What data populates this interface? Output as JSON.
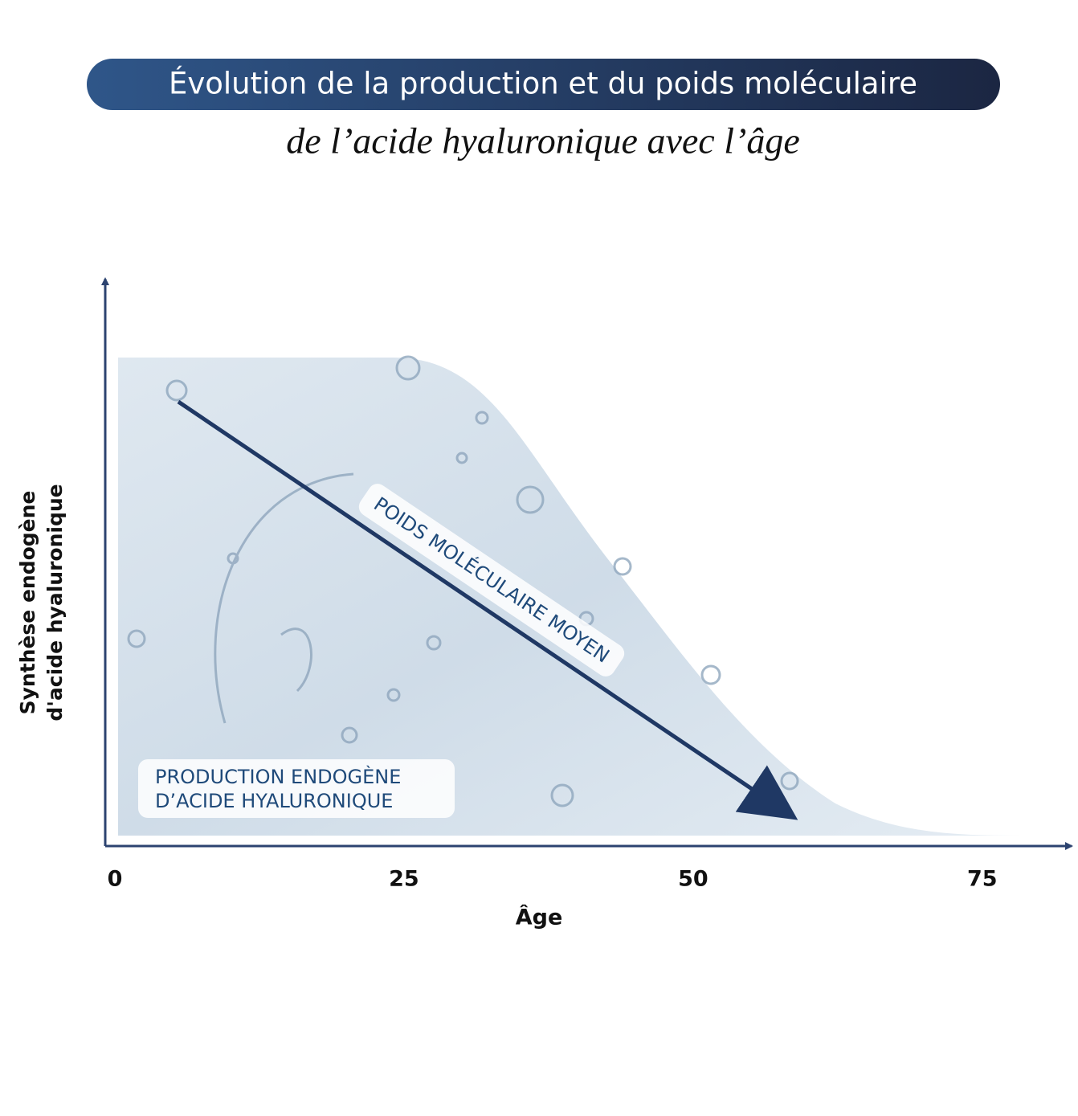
{
  "chart_data": {
    "type": "area",
    "title": "Évolution de la production et du poids moléculaire",
    "subtitle": "de l’acide hyaluronique avec l’âge",
    "x_label": "Âge",
    "y_label": [
      "Synthèse endogène",
      "d'acide hyaluronique"
    ],
    "xlim": [
      0,
      83
    ],
    "xticks": [
      0,
      25,
      50,
      75
    ],
    "annotations": [
      "POIDS MOLÉCULAIRE MOYEN",
      "PRODUCTION ENDOGÈNE",
      "D’ACIDE HYALURONIQUE"
    ]
  }
}
